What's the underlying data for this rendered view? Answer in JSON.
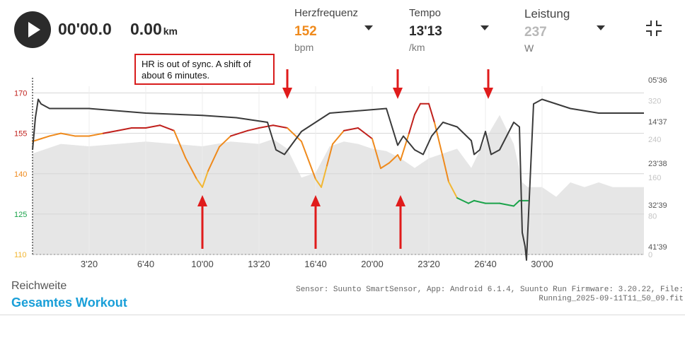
{
  "player": {
    "time": "00'00.0",
    "distance": "0.00",
    "distance_unit": "km"
  },
  "metrics": [
    {
      "label": "Herzfrequenz",
      "value": "152",
      "unit": "bpm",
      "color": "#ef8a1c"
    },
    {
      "label": "Tempo",
      "value": "13'13",
      "unit": "/km",
      "color": "#2b2b2b"
    },
    {
      "label": "Leistung",
      "value": "237",
      "unit": "W",
      "color": "#b8b8b8"
    }
  ],
  "annotation": "HR is out of sync. A shift of about 6 minutes.",
  "range": {
    "label": "Reichweite",
    "value": "Gesamtes Workout"
  },
  "footer": {
    "line1": "Sensor: Suunto SmartSensor, App: Android 6.1.4, Suunto Run Firmware: 3.20.22, File:",
    "line2": "Running_2025-09-11T11_50_09.fit"
  },
  "colors": {
    "hr_zone_red": "#c0201c",
    "hr_zone_orange": "#ef8a1c",
    "hr_zone_yellow": "#f2b632",
    "hr_zone_green": "#1aa34a",
    "pace_line": "#3a3a3a",
    "power_area": "#e6e6e6",
    "arrow": "#e01b1b",
    "accent_blue": "#1a9fd8"
  },
  "chart_data": {
    "type": "line",
    "x_unit": "mm:ss elapsed",
    "x_range_seconds": [
      0,
      2160
    ],
    "x_ticks": [
      "3'20",
      "6'40",
      "10'00",
      "13'20",
      "16'40",
      "20'00",
      "23'20",
      "26'40",
      "30'00"
    ],
    "x_tick_seconds": [
      200,
      400,
      600,
      800,
      1000,
      1200,
      1400,
      1600,
      1800
    ],
    "hr_axis": {
      "ticks": [
        170,
        155,
        140,
        125,
        110
      ],
      "tick_colors": [
        "#c0201c",
        "#c0201c",
        "#ef8a1c",
        "#1aa34a",
        "#f2b632"
      ],
      "ylim": [
        110,
        172.5
      ]
    },
    "pace_axis": {
      "ticks": [
        "05'36",
        "14'37",
        "23'38",
        "32'39",
        "41'39"
      ]
    },
    "power_axis": {
      "ticks": [
        320,
        240,
        160,
        80,
        0
      ],
      "ylim": [
        0,
        350
      ]
    },
    "series": [
      {
        "name": "Herzfrequenz",
        "x": [
          0,
          30,
          60,
          100,
          150,
          200,
          250,
          300,
          350,
          400,
          450,
          500,
          540,
          560,
          580,
          600,
          620,
          660,
          700,
          760,
          800,
          850,
          900,
          950,
          1000,
          1020,
          1040,
          1060,
          1100,
          1150,
          1200,
          1230,
          1260,
          1290,
          1300,
          1330,
          1350,
          1370,
          1400,
          1420,
          1450,
          1470,
          1500,
          1540,
          1560,
          1600,
          1650,
          1700,
          1720,
          1750
        ],
        "y": [
          152,
          153,
          154,
          155,
          154,
          154,
          155,
          156,
          157,
          157,
          158,
          156,
          146,
          142,
          138,
          135,
          141,
          150,
          154,
          156,
          157,
          158,
          157,
          152,
          138,
          135,
          143,
          151,
          156,
          157,
          153,
          142,
          144,
          147,
          145,
          155,
          162,
          166,
          166,
          159,
          146,
          137,
          131,
          129,
          130,
          129,
          129,
          128,
          130,
          130
        ]
      },
      {
        "name": "Tempo",
        "x": [
          0,
          10,
          20,
          30,
          60,
          200,
          400,
          600,
          720,
          830,
          860,
          890,
          950,
          1050,
          1250,
          1290,
          1310,
          1350,
          1380,
          1410,
          1450,
          1500,
          1550,
          1560,
          1580,
          1600,
          1620,
          1650,
          1700,
          1720,
          1730,
          1740,
          1745,
          1770,
          1800,
          1900,
          2000,
          2100,
          2160
        ],
        "y": [
          -120,
          -50,
          -10,
          -20,
          -30,
          -30,
          -40,
          -45,
          -50,
          -60,
          -120,
          -130,
          -80,
          -40,
          -30,
          -110,
          -90,
          -120,
          -130,
          -90,
          -60,
          -70,
          -100,
          -130,
          -120,
          -80,
          -130,
          -120,
          -60,
          -70,
          -300,
          -330,
          -360,
          -20,
          -10,
          -30,
          -40,
          -40,
          -40
        ]
      },
      {
        "name": "Leistung",
        "x": [
          0,
          50,
          100,
          200,
          300,
          400,
          500,
          600,
          700,
          800,
          850,
          900,
          950,
          1000,
          1050,
          1100,
          1150,
          1200,
          1250,
          1300,
          1350,
          1400,
          1450,
          1500,
          1550,
          1600,
          1650,
          1700,
          1730,
          1750,
          1800,
          1850,
          1900,
          1950,
          2000,
          2050,
          2100,
          2160
        ],
        "y": [
          210,
          220,
          230,
          225,
          230,
          235,
          230,
          225,
          235,
          230,
          240,
          220,
          160,
          170,
          225,
          235,
          230,
          220,
          215,
          200,
          180,
          200,
          210,
          220,
          180,
          240,
          290,
          230,
          150,
          140,
          140,
          120,
          150,
          140,
          150,
          140,
          140,
          140
        ]
      }
    ],
    "arrows_down_seconds": [
      900,
      1290,
      1610
    ],
    "arrows_up_seconds": [
      600,
      1000,
      1300
    ]
  }
}
